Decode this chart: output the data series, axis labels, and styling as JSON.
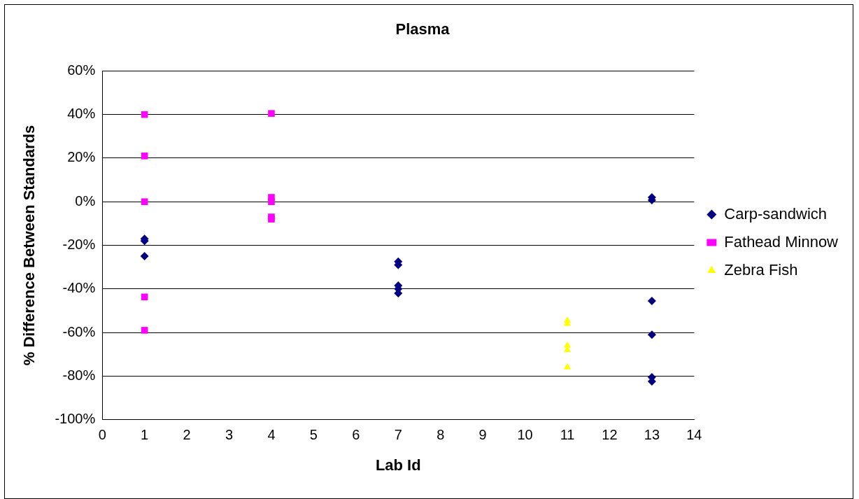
{
  "chart_data": {
    "type": "scatter",
    "title": "Plasma",
    "xlabel": "Lab Id",
    "ylabel": "% Difference Between Standards",
    "xlim": [
      0,
      14
    ],
    "xticks": [
      0,
      1,
      2,
      3,
      4,
      5,
      6,
      7,
      8,
      9,
      10,
      11,
      12,
      13,
      14
    ],
    "ylim": [
      -100,
      60
    ],
    "yticks": [
      {
        "value": -100,
        "label": "-100%"
      },
      {
        "value": -80,
        "label": "-80%"
      },
      {
        "value": -60,
        "label": "-60%"
      },
      {
        "value": -40,
        "label": "-40%"
      },
      {
        "value": -20,
        "label": "-20%"
      },
      {
        "value": 0,
        "label": "0%"
      },
      {
        "value": 20,
        "label": "20%"
      },
      {
        "value": 40,
        "label": "40%"
      },
      {
        "value": 60,
        "label": "60%"
      }
    ],
    "grid": "y",
    "legend": "right",
    "series": [
      {
        "name": "Carp-sandwich",
        "color": "#000080",
        "marker": "diamond",
        "x": [
          1,
          1,
          1,
          7,
          7,
          7,
          7,
          7,
          13,
          13,
          13,
          13,
          13,
          13
        ],
        "values": [
          -17,
          -18,
          -25,
          -27.5,
          -29,
          -38.5,
          -40,
          -42,
          2,
          0.7,
          -45.5,
          -61,
          -80.5,
          -82.5
        ]
      },
      {
        "name": "Fathead Minnow",
        "color": "#ff00ff",
        "marker": "square",
        "x": [
          1,
          1,
          1,
          1,
          1,
          4,
          4,
          4,
          4,
          4
        ],
        "values": [
          40,
          21,
          0,
          -43.7,
          -59,
          40.5,
          2,
          0,
          -7,
          -8
        ]
      },
      {
        "name": "Zebra Fish",
        "color": "#ffff00",
        "marker": "triangle",
        "x": [
          11,
          11,
          11,
          11,
          11
        ],
        "values": [
          -54.6,
          -56,
          -66,
          -68,
          -76
        ]
      }
    ]
  }
}
